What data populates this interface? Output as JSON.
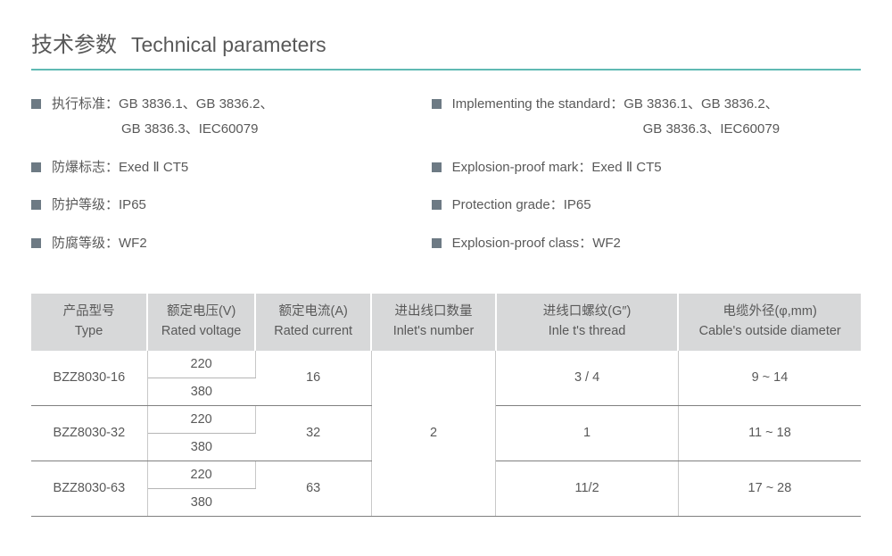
{
  "title": {
    "cn": "技术参数",
    "en": "Technical parameters"
  },
  "colors": {
    "divider": "#5fb9b3",
    "bullet": "#6d7a84",
    "text": "#595959",
    "th_bg": "#d7d8d9",
    "border": "#808080"
  },
  "specs_left": [
    {
      "label": "执行标准：",
      "value": "GB 3836.1、GB 3836.2、",
      "cont": "GB 3836.3、IEC60079"
    },
    {
      "label": "防爆标志：",
      "value": "Exed Ⅱ CT5"
    },
    {
      "label": "防护等级：",
      "value": "IP65"
    },
    {
      "label": "防腐等级：",
      "value": "WF2"
    }
  ],
  "specs_right": [
    {
      "label": "Implementing the standard：",
      "value": "GB 3836.1、GB 3836.2、",
      "cont": "GB 3836.3、IEC60079"
    },
    {
      "label": "Explosion-proof mark：",
      "value": "Exed Ⅱ CT5"
    },
    {
      "label": "Protection grade：",
      "value": "IP65"
    },
    {
      "label": "Explosion-proof class：",
      "value": "WF2"
    }
  ],
  "table": {
    "headers": [
      {
        "cn": "产品型号",
        "en": "Type"
      },
      {
        "cn": "额定电压(V)",
        "en": "Rated voltage"
      },
      {
        "cn": "额定电流(A)",
        "en": "Rated current"
      },
      {
        "cn": "进出线口数量",
        "en": "Inlet's number"
      },
      {
        "cn": "进线口螺纹(G″)",
        "en": "Inle t's thread"
      },
      {
        "cn": "电缆外径(φ,mm)",
        "en": "Cable's outside diameter"
      }
    ],
    "rows": [
      {
        "type": "BZZ8030-16",
        "v1": "220",
        "v2": "380",
        "current": "16",
        "thread": "3 / 4",
        "cable": "9 ~ 14"
      },
      {
        "type": "BZZ8030-32",
        "v1": "220",
        "v2": "380",
        "current": "32",
        "thread": "1",
        "cable": "11 ~ 18"
      },
      {
        "type": "BZZ8030-63",
        "v1": "220",
        "v2": "380",
        "current": "63",
        "thread": "11/2",
        "cable": "17 ~ 28"
      }
    ],
    "inlet_number": "2",
    "col_widths": [
      "14%",
      "13%",
      "14%",
      "15%",
      "22%",
      "22%"
    ]
  }
}
